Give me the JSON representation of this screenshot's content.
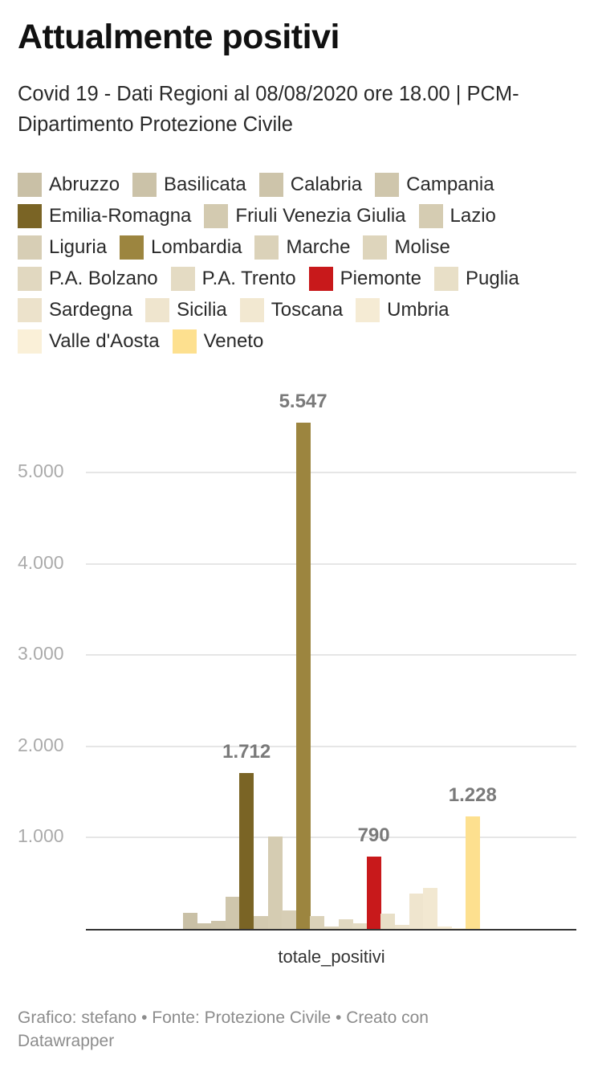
{
  "header": {
    "title": "Attualmente positivi",
    "subtitle": "Covid 19 - Dati Regioni al 08/08/2020 ore 18.00 | PCM- Dipartimento Protezione Civile"
  },
  "legend": [
    {
      "label": "Abruzzo",
      "color": "#c9c0a6"
    },
    {
      "label": "Basilicata",
      "color": "#cbc2a8"
    },
    {
      "label": "Calabria",
      "color": "#cdc4aa"
    },
    {
      "label": "Campania",
      "color": "#cfc6ac"
    },
    {
      "label": "Emilia-Romagna",
      "color": "#7a6425"
    },
    {
      "label": "Friuli Venezia Giulia",
      "color": "#d3cab0"
    },
    {
      "label": "Lazio",
      "color": "#d5ccb2"
    },
    {
      "label": "Liguria",
      "color": "#d7ceb5"
    },
    {
      "label": "Lombardia",
      "color": "#9c853f"
    },
    {
      "label": "Marche",
      "color": "#dbd2b9"
    },
    {
      "label": "Molise",
      "color": "#ded5bc"
    },
    {
      "label": "P.A. Bolzano",
      "color": "#e1d8c0"
    },
    {
      "label": "P.A. Trento",
      "color": "#e4dbc3"
    },
    {
      "label": "Piemonte",
      "color": "#c8191b"
    },
    {
      "label": "Puglia",
      "color": "#e8dfc7"
    },
    {
      "label": "Sardegna",
      "color": "#ece2cb"
    },
    {
      "label": "Sicilia",
      "color": "#efe5ce"
    },
    {
      "label": "Toscana",
      "color": "#f2e8d1"
    },
    {
      "label": "Umbria",
      "color": "#f5ebd4"
    },
    {
      "label": "Valle d'Aosta",
      "color": "#faf0d8"
    },
    {
      "label": "Veneto",
      "color": "#fde08f"
    }
  ],
  "chart_data": {
    "type": "bar",
    "title": "Attualmente positivi",
    "subtitle": "Covid 19 - Dati Regioni al 08/08/2020 ore 18.00 | PCM- Dipartimento Protezione Civile",
    "categories": [
      "totale_positivi"
    ],
    "xlabel": "totale_positivi",
    "ylabel": "",
    "ylim": [
      0,
      5547
    ],
    "yticks": [
      1000,
      2000,
      3000,
      4000,
      5000
    ],
    "ytick_labels": [
      "1.000",
      "2.000",
      "3.000",
      "4.000",
      "5.000"
    ],
    "grid": true,
    "legend_position": "top",
    "series": [
      {
        "name": "Abruzzo",
        "values": [
          180
        ]
      },
      {
        "name": "Basilicata",
        "values": [
          60
        ]
      },
      {
        "name": "Calabria",
        "values": [
          85
        ]
      },
      {
        "name": "Campania",
        "values": [
          355
        ]
      },
      {
        "name": "Emilia-Romagna",
        "values": [
          1712
        ],
        "label": "1.712"
      },
      {
        "name": "Friuli Venezia Giulia",
        "values": [
          140
        ]
      },
      {
        "name": "Lazio",
        "values": [
          1010
        ]
      },
      {
        "name": "Liguria",
        "values": [
          200
        ]
      },
      {
        "name": "Lombardia",
        "values": [
          5547
        ],
        "label": "5.547"
      },
      {
        "name": "Marche",
        "values": [
          140
        ]
      },
      {
        "name": "Molise",
        "values": [
          25
        ]
      },
      {
        "name": "P.A. Bolzano",
        "values": [
          105
        ]
      },
      {
        "name": "P.A. Trento",
        "values": [
          60
        ]
      },
      {
        "name": "Piemonte",
        "values": [
          790
        ],
        "label": "790"
      },
      {
        "name": "Puglia",
        "values": [
          165
        ]
      },
      {
        "name": "Sardegna",
        "values": [
          45
        ]
      },
      {
        "name": "Sicilia",
        "values": [
          390
        ]
      },
      {
        "name": "Toscana",
        "values": [
          450
        ]
      },
      {
        "name": "Umbria",
        "values": [
          25
        ]
      },
      {
        "name": "Valle d'Aosta",
        "values": [
          5
        ]
      },
      {
        "name": "Veneto",
        "values": [
          1228
        ],
        "label": "1.228"
      }
    ]
  },
  "footer": {
    "text": "Grafico: stefano • Fonte: Protezione Civile • Creato con Datawrapper"
  }
}
